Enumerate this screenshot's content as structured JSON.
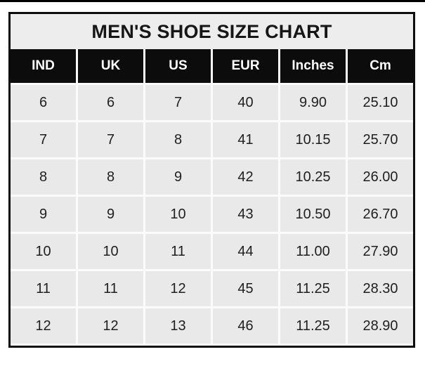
{
  "chart_data": {
    "type": "table",
    "title": "MEN'S SHOE SIZE CHART",
    "columns": [
      "IND",
      "UK",
      "US",
      "EUR",
      "Inches",
      "Cm"
    ],
    "rows": [
      [
        "6",
        "6",
        "7",
        "40",
        "9.90",
        "25.10"
      ],
      [
        "7",
        "7",
        "8",
        "41",
        "10.15",
        "25.70"
      ],
      [
        "8",
        "8",
        "9",
        "42",
        "10.25",
        "26.00"
      ],
      [
        "9",
        "9",
        "10",
        "43",
        "10.50",
        "26.70"
      ],
      [
        "10",
        "10",
        "11",
        "44",
        "11.00",
        "27.90"
      ],
      [
        "11",
        "11",
        "12",
        "45",
        "11.25",
        "28.30"
      ],
      [
        "12",
        "12",
        "13",
        "46",
        "11.25",
        "28.90"
      ]
    ],
    "layout": {
      "legend": "none",
      "grid": "white gridlines between gray cells",
      "header_position": "top"
    },
    "colors": {
      "border": "#0d0d0d",
      "title_bg": "#ededed",
      "header_bg": "#0c0c0c",
      "header_text": "#ffffff",
      "cell_bg": "#e9e9e9",
      "grid_line": "#fbfbfb",
      "text": "#1f1f1f"
    }
  }
}
